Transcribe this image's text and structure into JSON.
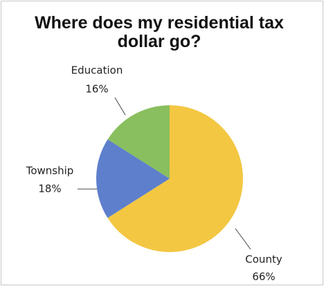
{
  "chart_data": {
    "type": "pie",
    "title": "Where does my residential tax dollar go?",
    "categories": [
      "Education",
      "Township",
      "County"
    ],
    "values": [
      16,
      18,
      66
    ],
    "value_labels": [
      "16%",
      "18%",
      "66%"
    ],
    "colors": [
      "#7cb84e",
      "#4d72c6",
      "#f2c12e"
    ]
  }
}
